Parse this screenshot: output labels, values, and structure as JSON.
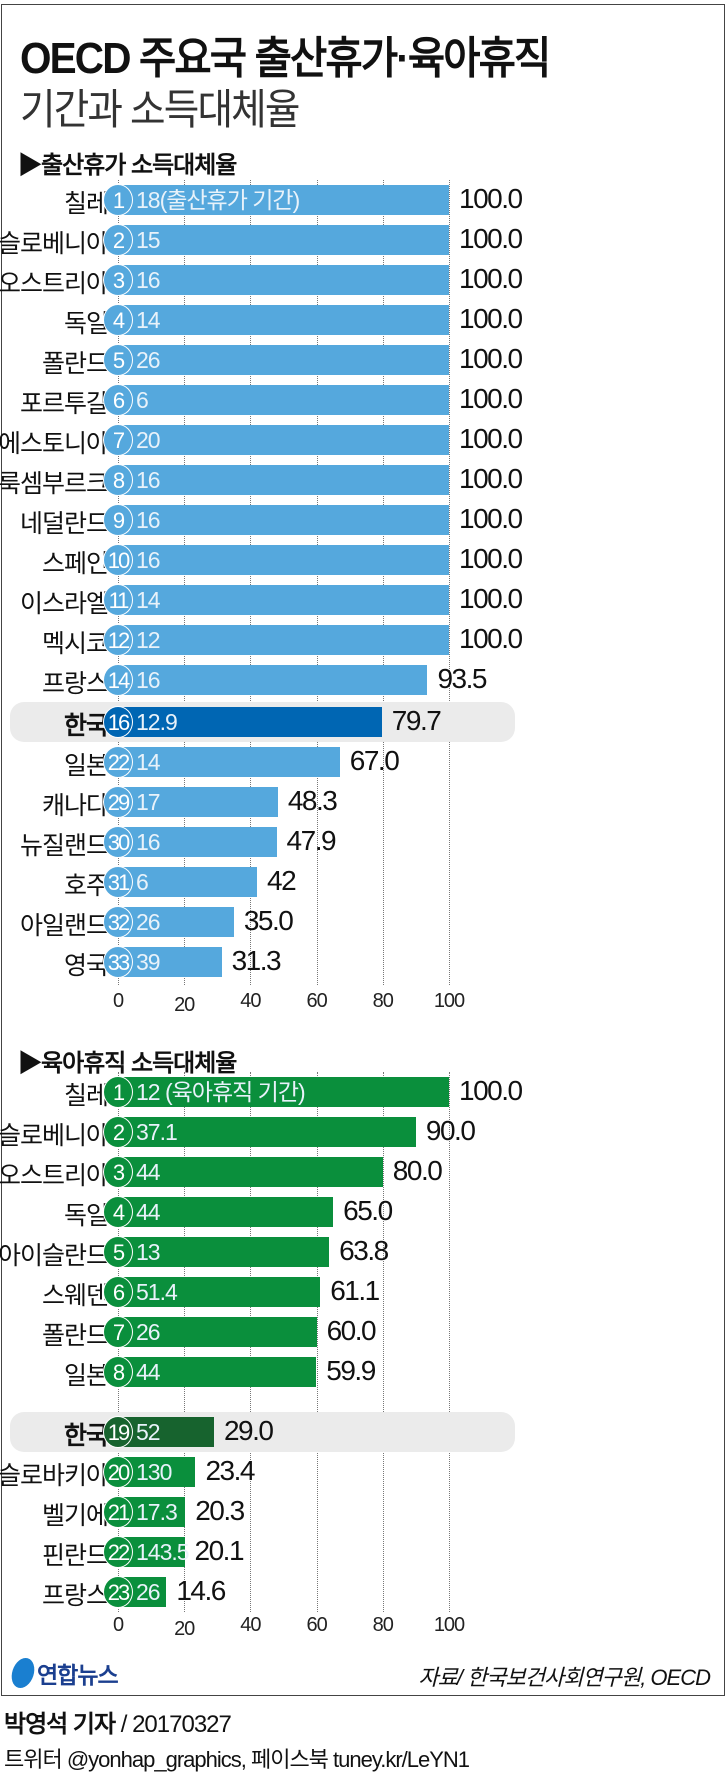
{
  "header": {
    "title": "OECD 주요국 출산휴가·육아휴직",
    "subtitle": "기간과 소득대체율"
  },
  "chart_data": [
    {
      "type": "bar",
      "orientation": "horizontal",
      "title": "출산휴가 소득대체율",
      "bar_color": "#55a8dd",
      "highlight_color": "#0066b3",
      "highlight": "한국",
      "xlim": [
        0,
        100
      ],
      "xticks": [
        "0",
        "20",
        "40",
        "60",
        "80",
        "100"
      ],
      "rows": [
        {
          "country": "칠레",
          "rank": "1",
          "duration": "18(출산휴가 기간)",
          "value": 100.0,
          "label": "100.0"
        },
        {
          "country": "슬로베니아",
          "rank": "2",
          "duration": "15",
          "value": 100.0,
          "label": "100.0"
        },
        {
          "country": "오스트리아",
          "rank": "3",
          "duration": "16",
          "value": 100.0,
          "label": "100.0"
        },
        {
          "country": "독일",
          "rank": "4",
          "duration": "14",
          "value": 100.0,
          "label": "100.0"
        },
        {
          "country": "폴란드",
          "rank": "5",
          "duration": "26",
          "value": 100.0,
          "label": "100.0"
        },
        {
          "country": "포르투갈",
          "rank": "6",
          "duration": "6",
          "value": 100.0,
          "label": "100.0"
        },
        {
          "country": "에스토니아",
          "rank": "7",
          "duration": "20",
          "value": 100.0,
          "label": "100.0"
        },
        {
          "country": "룩셈부르크",
          "rank": "8",
          "duration": "16",
          "value": 100.0,
          "label": "100.0"
        },
        {
          "country": "네덜란드",
          "rank": "9",
          "duration": "16",
          "value": 100.0,
          "label": "100.0"
        },
        {
          "country": "스페인",
          "rank": "10",
          "duration": "16",
          "value": 100.0,
          "label": "100.0"
        },
        {
          "country": "이스라엘",
          "rank": "11",
          "duration": "14",
          "value": 100.0,
          "label": "100.0"
        },
        {
          "country": "멕시코",
          "rank": "12",
          "duration": "12",
          "value": 100.0,
          "label": "100.0"
        },
        {
          "country": "프랑스",
          "rank": "14",
          "duration": "16",
          "value": 93.5,
          "label": "93.5"
        },
        {
          "country": "한국",
          "rank": "16",
          "duration": "12.9",
          "value": 79.7,
          "label": "79.7"
        },
        {
          "country": "일본",
          "rank": "22",
          "duration": "14",
          "value": 67.0,
          "label": "67.0"
        },
        {
          "country": "캐나다",
          "rank": "29",
          "duration": "17",
          "value": 48.3,
          "label": "48.3"
        },
        {
          "country": "뉴질랜드",
          "rank": "30",
          "duration": "16",
          "value": 47.9,
          "label": "47.9"
        },
        {
          "country": "호주",
          "rank": "31",
          "duration": "6",
          "value": 42,
          "label": "42"
        },
        {
          "country": "아일랜드",
          "rank": "32",
          "duration": "26",
          "value": 35.0,
          "label": "35.0"
        },
        {
          "country": "영국",
          "rank": "33",
          "duration": "39",
          "value": 31.3,
          "label": "31.3"
        }
      ]
    },
    {
      "type": "bar",
      "orientation": "horizontal",
      "title": "육아휴직 소득대체율",
      "bar_color": "#0a8f3c",
      "highlight_color": "#17632e",
      "highlight": "한국",
      "xlim": [
        0,
        100
      ],
      "xticks": [
        "0",
        "20",
        "40",
        "60",
        "80",
        "100"
      ],
      "rows": [
        {
          "country": "칠레",
          "rank": "1",
          "duration": "12 (육아휴직 기간)",
          "value": 100.0,
          "label": "100.0"
        },
        {
          "country": "슬로베니아",
          "rank": "2",
          "duration": "37.1",
          "value": 90.0,
          "label": "90.0"
        },
        {
          "country": "오스트리아",
          "rank": "3",
          "duration": "44",
          "value": 80.0,
          "label": "80.0"
        },
        {
          "country": "독일",
          "rank": "4",
          "duration": "44",
          "value": 65.0,
          "label": "65.0"
        },
        {
          "country": "아이슬란드",
          "rank": "5",
          "duration": "13",
          "value": 63.8,
          "label": "63.8"
        },
        {
          "country": "스웨덴",
          "rank": "6",
          "duration": "51.4",
          "value": 61.1,
          "label": "61.1"
        },
        {
          "country": "폴란드",
          "rank": "7",
          "duration": "26",
          "value": 60.0,
          "label": "60.0"
        },
        {
          "country": "일본",
          "rank": "8",
          "duration": "44",
          "value": 59.9,
          "label": "59.9"
        },
        {
          "country": "한국",
          "rank": "19",
          "duration": "52",
          "value": 29.0,
          "label": "29.0"
        },
        {
          "country": "슬로바키아",
          "rank": "20",
          "duration": "130",
          "value": 23.4,
          "label": "23.4"
        },
        {
          "country": "벨기에",
          "rank": "21",
          "duration": "17.3",
          "value": 20.3,
          "label": "20.3"
        },
        {
          "country": "핀란드",
          "rank": "22",
          "duration": "143.5",
          "value": 20.1,
          "label": "20.1"
        },
        {
          "country": "프랑스",
          "rank": "23",
          "duration": "26",
          "value": 14.6,
          "label": "14.6"
        }
      ]
    }
  ],
  "footer": {
    "logo_text": "연합뉴스",
    "source": "자료/ 한국보건사회연구원, OECD",
    "reporter": "박영석 기자",
    "date": "/ 20170327",
    "social": "트위터 @yonhap_graphics, 페이스북 tuney.kr/LeYN1"
  }
}
